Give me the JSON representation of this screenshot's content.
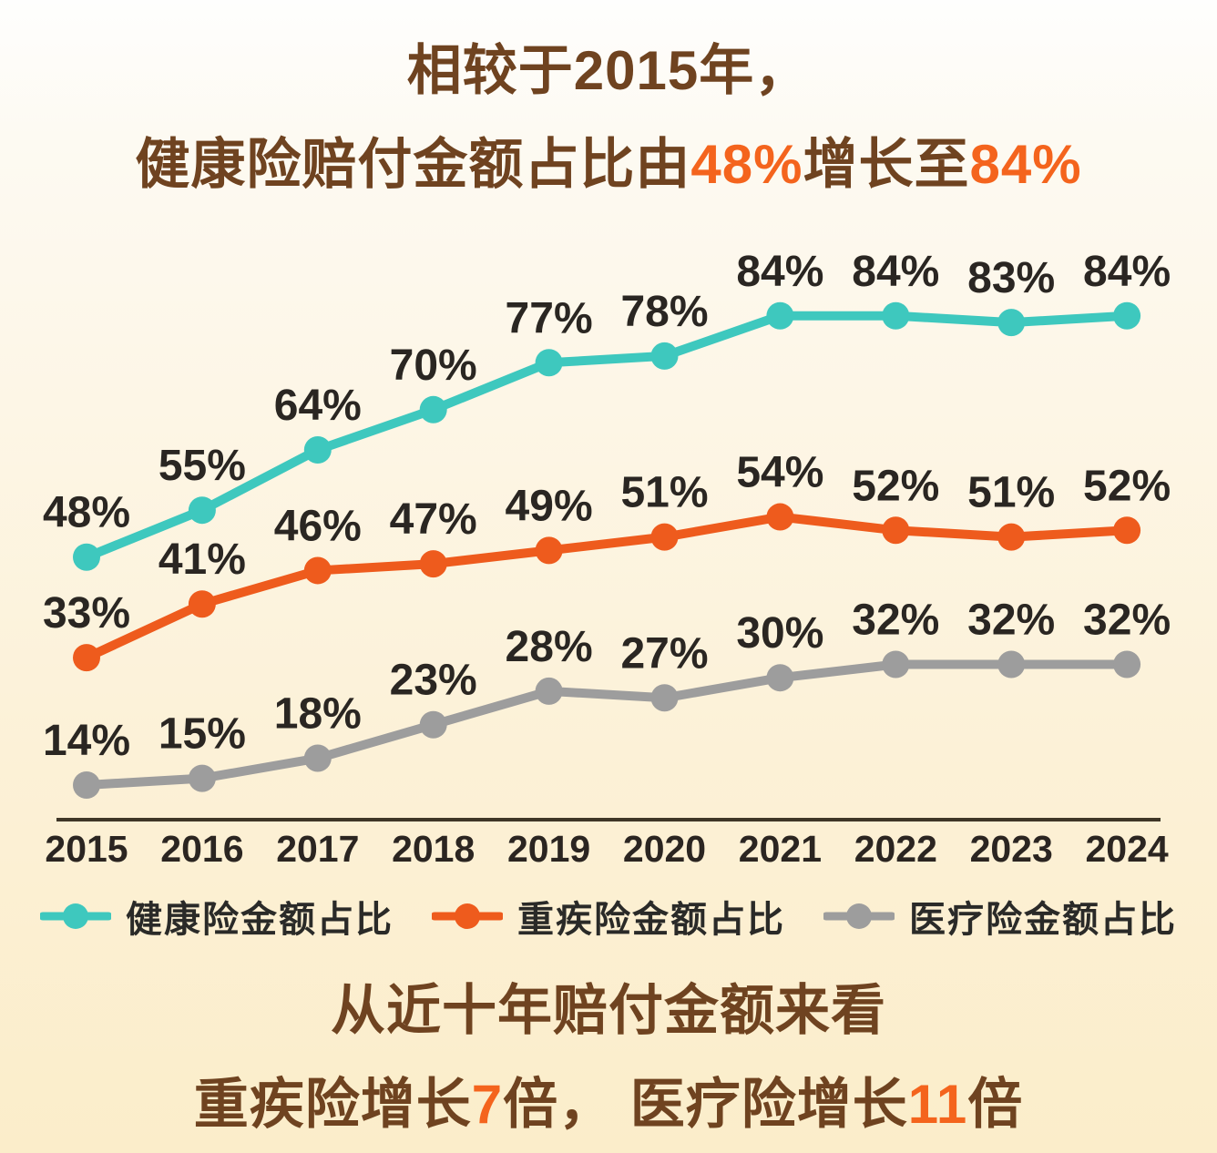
{
  "title": {
    "line1": "相较于2015年，",
    "line2_segments": [
      {
        "text": "健康险赔付金额占比由",
        "accent": false
      },
      {
        "text": "48%",
        "accent": true
      },
      {
        "text": "增长至",
        "accent": false
      },
      {
        "text": "84%",
        "accent": true
      }
    ]
  },
  "chart_data": {
    "type": "line",
    "categories": [
      "2015",
      "2016",
      "2017",
      "2018",
      "2019",
      "2020",
      "2021",
      "2022",
      "2023",
      "2024"
    ],
    "series": [
      {
        "id": "health",
        "name": "健康险金额占比",
        "color": "#3ec8be",
        "values": [
          48,
          55,
          64,
          70,
          77,
          78,
          84,
          84,
          83,
          84
        ]
      },
      {
        "id": "critical",
        "name": "重疾险金额占比",
        "color": "#ee5b1d",
        "values": [
          33,
          41,
          46,
          47,
          49,
          51,
          54,
          52,
          51,
          52
        ]
      },
      {
        "id": "medical",
        "name": "医疗险金额占比",
        "color": "#9d9d9d",
        "values": [
          14,
          15,
          18,
          23,
          28,
          27,
          30,
          32,
          32,
          32
        ]
      }
    ],
    "data_label_format": "{value}%",
    "xlabel": "",
    "ylabel": "",
    "ylim": [
      0,
      100
    ],
    "grid": false,
    "legend_position": "bottom",
    "title": "相较于2015年，健康险赔付金额占比由48%增长至84%"
  },
  "footer": {
    "line1": "从近十年赔付金额来看",
    "line2_segments": [
      {
        "text": "重疾险增长",
        "accent": false
      },
      {
        "text": "7",
        "accent": true
      },
      {
        "text": "倍， ",
        "accent": false
      },
      {
        "text": "医疗险增长",
        "accent": false
      },
      {
        "text": "11",
        "accent": true
      },
      {
        "text": "倍",
        "accent": false
      }
    ]
  },
  "colors": {
    "background_top": "#fefefd",
    "background_bottom": "#fbedca",
    "title_brown": "#6f4320",
    "accent_orange": "#f4641d",
    "data_label": "#2a2622",
    "axis_line": "#3f3627",
    "year_label": "#2b2521",
    "legend_text": "#2a2a28",
    "series_health": "#3ec8be",
    "series_critical": "#ee5b1d",
    "series_medical": "#9d9d9d"
  }
}
